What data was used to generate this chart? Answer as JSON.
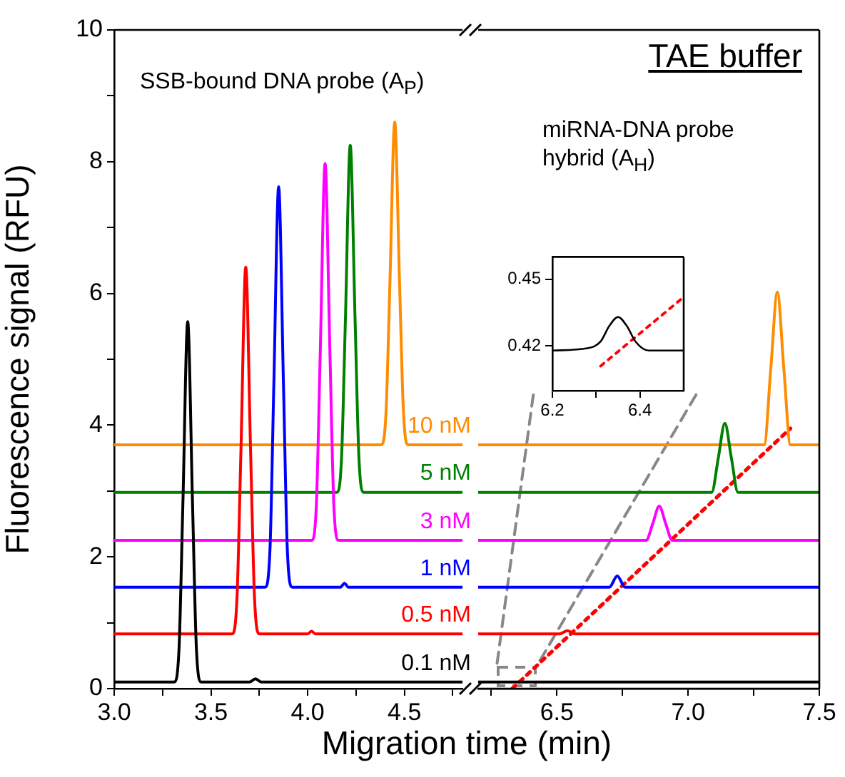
{
  "chart_data": [
    {
      "type": "line",
      "xlabel": "Migration time (min)",
      "ylabel": "Fluorescence signal (RFU)",
      "annotations": [
        "SSB-bound DNA probe (A$_{P}$)"
      ],
      "marker": "none",
      "xlim": [
        3.0,
        4.8
      ],
      "xticks": [
        {
          "value": 3.0,
          "label": "3.0"
        },
        {
          "value": 3.25,
          "label": null
        },
        3.5,
        {
          "value": 3.75,
          "label": null
        },
        {
          "value": 4.0,
          "label": "4.0"
        },
        {
          "value": 4.25,
          "label": null
        },
        4.5,
        {
          "value": 4.75,
          "label": null
        }
      ],
      "ylim": [
        0,
        10
      ],
      "yticks": [
        0,
        {
          "value": 1,
          "label": null
        },
        2,
        {
          "value": 3,
          "label": null
        },
        4,
        {
          "value": 5,
          "label": null
        },
        6,
        {
          "value": 7,
          "label": null
        },
        8,
        {
          "value": 9,
          "label": null
        },
        10
      ],
      "series": [
        {
          "name": "0.1 nM",
          "color": "#000000",
          "x": [
            3.0,
            3.31,
            3.335,
            3.355,
            3.38,
            3.405,
            3.425,
            3.45,
            3.7,
            3.73,
            3.76,
            4.8
          ],
          "values": [
            0.1,
            0.1,
            0.6,
            2.8,
            5.57,
            2.8,
            0.6,
            0.1,
            0.1,
            0.15,
            0.1,
            0.1
          ]
        },
        {
          "name": "0.5 nM",
          "color": "#ff0000",
          "x": [
            3.0,
            3.61,
            3.635,
            3.655,
            3.68,
            3.705,
            3.725,
            3.75,
            4.0,
            4.02,
            4.04,
            4.8
          ],
          "values": [
            0.83,
            0.83,
            1.4,
            3.6,
            6.4,
            3.6,
            1.4,
            0.83,
            0.83,
            0.87,
            0.83,
            0.83
          ]
        },
        {
          "name": "1 nM",
          "color": "#0000ff",
          "x": [
            3.0,
            3.78,
            3.805,
            3.825,
            3.85,
            3.875,
            3.895,
            3.92,
            4.17,
            4.19,
            4.21,
            4.8
          ],
          "values": [
            1.54,
            1.54,
            2.1,
            4.6,
            7.62,
            4.6,
            2.1,
            1.54,
            1.54,
            1.6,
            1.54,
            1.54
          ]
        },
        {
          "name": "3 nM",
          "color": "#ff00ff",
          "x": [
            3.0,
            4.02,
            4.045,
            4.065,
            4.09,
            4.115,
            4.135,
            4.16,
            4.8
          ],
          "values": [
            2.25,
            2.25,
            2.8,
            5.1,
            7.97,
            5.1,
            2.8,
            2.25,
            2.25
          ]
        },
        {
          "name": "5 nM",
          "color": "#008000",
          "x": [
            3.0,
            4.15,
            4.175,
            4.195,
            4.22,
            4.245,
            4.265,
            4.29,
            4.8
          ],
          "values": [
            2.98,
            2.98,
            3.5,
            5.6,
            8.25,
            5.6,
            3.5,
            2.98,
            2.98
          ]
        },
        {
          "name": "10 nM",
          "color": "#ff8c00",
          "x": [
            3.0,
            4.38,
            4.405,
            4.425,
            4.45,
            4.475,
            4.495,
            4.52,
            4.8
          ],
          "values": [
            3.7,
            3.7,
            4.2,
            6.15,
            8.6,
            6.15,
            4.2,
            3.7,
            3.7
          ]
        }
      ]
    },
    {
      "type": "line",
      "title": "TAE buffer",
      "annotations": [
        "miRNA-DNA probe hybrid (A$_{H}$)"
      ],
      "marker": "none",
      "tick_labels": "x",
      "xlim": [
        6.2,
        7.5
      ],
      "xticks": [
        {
          "value": 6.25,
          "label": null
        },
        6.5,
        {
          "value": 6.75,
          "label": null
        },
        {
          "value": 7.0,
          "label": "7.0"
        },
        {
          "value": 7.25,
          "label": null
        },
        7.5
      ],
      "ylim": [
        0,
        10
      ],
      "yticks": [
        0,
        2,
        4,
        6,
        8,
        10
      ],
      "series": [
        {
          "color": "#000000",
          "x": [
            6.2,
            7.5
          ],
          "values": [
            0.1,
            0.1
          ]
        },
        {
          "color": "#ff0000",
          "x": [
            6.2,
            6.51,
            6.54,
            6.57,
            7.5
          ],
          "values": [
            0.83,
            0.83,
            0.88,
            0.83,
            0.83
          ]
        },
        {
          "color": "#0000ff",
          "x": [
            6.2,
            6.7,
            6.73,
            6.76,
            7.5
          ],
          "values": [
            1.54,
            1.54,
            1.71,
            1.54,
            1.54
          ]
        },
        {
          "color": "#ff00ff",
          "x": [
            6.2,
            6.84,
            6.865,
            6.89,
            6.915,
            6.94,
            7.5
          ],
          "values": [
            2.25,
            2.25,
            2.5,
            2.77,
            2.5,
            2.25,
            2.25
          ]
        },
        {
          "color": "#008000",
          "x": [
            6.2,
            7.09,
            7.115,
            7.14,
            7.165,
            7.19,
            7.5
          ],
          "values": [
            2.98,
            2.98,
            3.5,
            4.03,
            3.5,
            2.98,
            2.98
          ]
        },
        {
          "color": "#ff8c00",
          "x": [
            6.2,
            7.29,
            7.315,
            7.34,
            7.365,
            7.39,
            7.5
          ],
          "values": [
            3.7,
            3.7,
            4.85,
            6.02,
            4.85,
            3.7,
            3.7
          ]
        },
        {
          "type": "line",
          "line_style": "dotted",
          "color": "#ff0000",
          "x": [
            6.33,
            7.39
          ],
          "values": [
            0,
            3.95
          ]
        },
        {
          "type": "line",
          "line_style": "dashed",
          "color": "#888888",
          "x": [
            6.41,
            6.27
          ],
          "values": [
            4.46,
            0.32
          ]
        },
        {
          "type": "line",
          "line_style": "dashed",
          "color": "#888888",
          "x": [
            7.03,
            6.42
          ],
          "values": [
            4.46,
            0.32
          ]
        }
      ]
    },
    {
      "type": "line",
      "marker": "none",
      "xlim": [
        6.2,
        6.5
      ],
      "xticks": [
        6.2,
        {
          "value": 6.3,
          "label": null
        },
        6.4
      ],
      "ylim": [
        0.4,
        0.46
      ],
      "yticks": [
        0.42,
        0.45
      ],
      "series": [
        {
          "color": "#000000",
          "x": [
            6.2,
            6.28,
            6.31,
            6.33,
            6.35,
            6.37,
            6.39,
            6.42,
            6.5
          ],
          "values": [
            0.418,
            0.419,
            0.422,
            0.429,
            0.433,
            0.429,
            0.422,
            0.418,
            0.418
          ]
        },
        {
          "type": "line",
          "line_style": "dotted",
          "color": "#ff0000",
          "x": [
            6.31,
            6.5
          ],
          "values": [
            0.411,
            0.442
          ]
        }
      ]
    }
  ]
}
